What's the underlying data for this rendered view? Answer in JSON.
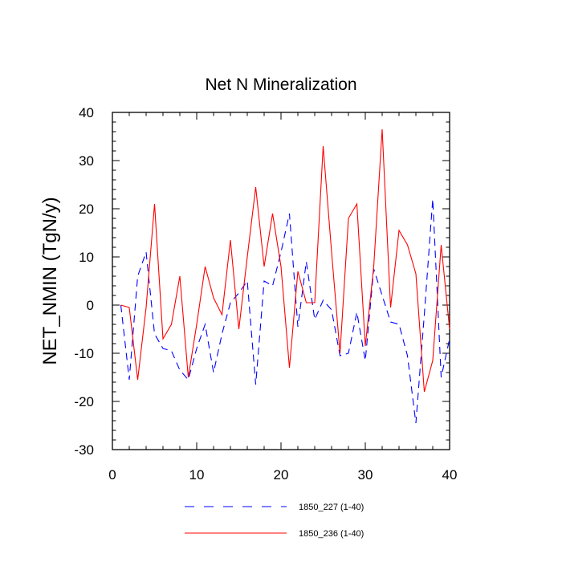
{
  "chart_data": {
    "type": "line",
    "title": "Net N Mineralization",
    "xlabel": "",
    "ylabel": "NET_NMIN  (TgN/y)",
    "xlim": [
      0,
      40
    ],
    "ylim": [
      -30,
      40
    ],
    "xticks": [
      0,
      10,
      20,
      30,
      40
    ],
    "yticks": [
      -30,
      -20,
      -10,
      0,
      10,
      20,
      30,
      40
    ],
    "x": [
      1,
      2,
      3,
      4,
      5,
      6,
      7,
      8,
      9,
      10,
      11,
      12,
      13,
      14,
      15,
      16,
      17,
      18,
      19,
      20,
      21,
      22,
      23,
      24,
      25,
      26,
      27,
      28,
      29,
      30,
      31,
      32,
      33,
      34,
      35,
      36,
      37,
      38,
      39,
      40
    ],
    "series": [
      {
        "name": "1850_227 (1-40)",
        "color": "#0000ff",
        "dash": "dashed",
        "values": [
          0,
          -15.5,
          6,
          11,
          -6,
          -9,
          -9.5,
          -13.5,
          -15.5,
          -9,
          -4,
          -14,
          -6,
          0.5,
          2.5,
          5,
          -16.5,
          5,
          4,
          11,
          19,
          -4.5,
          9,
          -3,
          1,
          -1,
          -10.5,
          -10,
          -1.5,
          -11.5,
          7.5,
          2,
          -3.5,
          -4,
          -10.5,
          -24.5,
          -2,
          22,
          -15,
          -7
        ]
      },
      {
        "name": "1850_236 (1-40)",
        "color": "#ff0000",
        "dash": "solid",
        "values": [
          0,
          -0.5,
          -15.5,
          -0.5,
          21,
          -7,
          -4,
          6,
          -15,
          -4,
          8,
          1.5,
          -2,
          13.5,
          -5,
          10,
          24.5,
          8,
          19,
          8,
          -13,
          7,
          0.5,
          0.5,
          33,
          11,
          -10,
          18,
          21,
          -8.5,
          8,
          36.5,
          -0.5,
          15.5,
          12.5,
          6.5,
          -18,
          -11.5,
          12.5,
          -5
        ]
      }
    ],
    "legend_position": "bottom",
    "grid": false
  }
}
